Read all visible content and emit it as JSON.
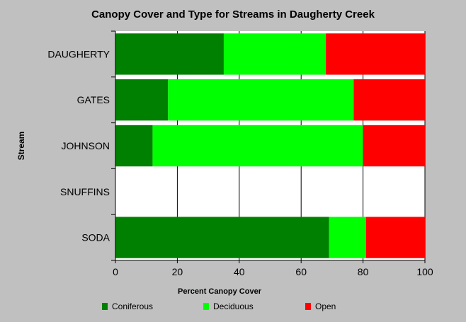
{
  "chart_data": {
    "type": "bar",
    "orientation": "horizontal",
    "stacked": true,
    "title": "Canopy Cover and Type for Streams in Daugherty Creek",
    "xlabel": "Percent Canopy Cover",
    "ylabel": "Stream",
    "xlim": [
      0,
      100
    ],
    "xticks": [
      0,
      20,
      40,
      60,
      80,
      100
    ],
    "grid": true,
    "legend_position": "bottom",
    "categories": [
      "DAUGHERTY",
      "GATES",
      "JOHNSON",
      "SNUFFINS",
      "SODA"
    ],
    "series": [
      {
        "name": "Coniferous",
        "color": "#008000",
        "values": [
          35,
          17,
          12,
          0,
          69
        ]
      },
      {
        "name": "Deciduous",
        "color": "#00ff00",
        "values": [
          33,
          60,
          68,
          0,
          12
        ]
      },
      {
        "name": "Open",
        "color": "#ff0000",
        "values": [
          32,
          23,
          20,
          0,
          19
        ]
      }
    ]
  }
}
